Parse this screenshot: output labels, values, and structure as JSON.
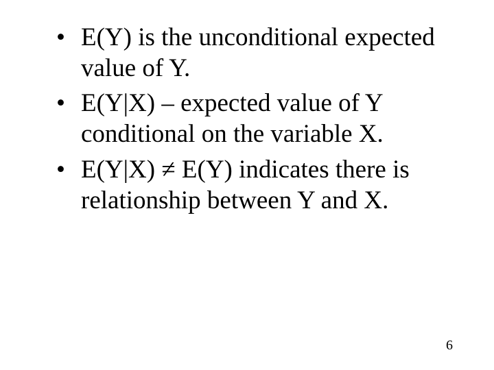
{
  "bullets": [
    "E(Y) is the unconditional expected value of Y.",
    "E(Y|X) – expected  value of Y conditional on the variable X.",
    "E(Y|X) ≠ E(Y) indicates there is relationship between Y and X."
  ],
  "page_number": "6",
  "colors": {
    "background": "#ffffff",
    "text": "#000000"
  },
  "typography": {
    "font_family": "Times New Roman",
    "bullet_fontsize_pt": 28,
    "pagenum_fontsize_pt": 15
  }
}
